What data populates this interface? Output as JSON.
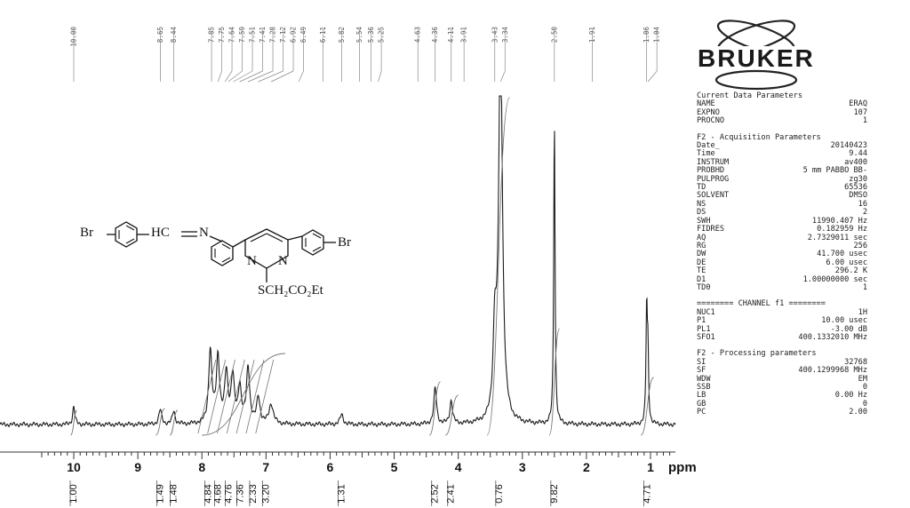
{
  "chart_data": {
    "type": "line",
    "title": "",
    "xlabel": "ppm",
    "ylabel": "",
    "xlim": [
      10.8,
      0.2
    ],
    "x_reversed": true,
    "grid": false,
    "x_ticks": [
      "10",
      "9",
      "8",
      "7",
      "6",
      "5",
      "4",
      "3",
      "2",
      "1"
    ],
    "peak_labels": [
      "10.00",
      "8.65",
      "8.44",
      "7.85",
      "7.75",
      "7.64",
      "7.59",
      "7.51",
      "7.41",
      "7.28",
      "7.12",
      "6.92",
      "6.49",
      "6.11",
      "5.82",
      "5.54",
      "5.36",
      "5.25",
      "4.63",
      "4.36",
      "4.11",
      "3.91",
      "3.43",
      "3.34",
      "2.50",
      "1.91",
      "1.06",
      "1.04"
    ],
    "integrals": [
      {
        "ppm": 10.0,
        "value": "1.00"
      },
      {
        "ppm": 8.65,
        "value": "1.49"
      },
      {
        "ppm": 8.44,
        "value": "1.48"
      },
      {
        "ppm": 7.9,
        "value": "4.84"
      },
      {
        "ppm": 7.75,
        "value": "4.68"
      },
      {
        "ppm": 7.58,
        "value": "4.76"
      },
      {
        "ppm": 7.4,
        "value": "7.36"
      },
      {
        "ppm": 7.2,
        "value": "2.33"
      },
      {
        "ppm": 7.0,
        "value": "3.20"
      },
      {
        "ppm": 5.82,
        "value": "1.31"
      },
      {
        "ppm": 4.36,
        "value": "2.52"
      },
      {
        "ppm": 4.11,
        "value": "2.41"
      },
      {
        "ppm": 3.36,
        "value": "0.76"
      },
      {
        "ppm": 2.5,
        "value": "9.82"
      },
      {
        "ppm": 1.05,
        "value": "4.71"
      }
    ],
    "series": [
      {
        "intensity_scale": "fraction of plot height",
        "peaks": [
          {
            "ppm": 10.0,
            "intensity": 0.055,
            "width": 0.02
          },
          {
            "ppm": 8.65,
            "intensity": 0.045,
            "width": 0.025
          },
          {
            "ppm": 8.44,
            "intensity": 0.04,
            "width": 0.025
          },
          {
            "ppm": 7.87,
            "intensity": 0.22,
            "width": 0.03
          },
          {
            "ppm": 7.75,
            "intensity": 0.2,
            "width": 0.03
          },
          {
            "ppm": 7.62,
            "intensity": 0.15,
            "width": 0.03
          },
          {
            "ppm": 7.52,
            "intensity": 0.14,
            "width": 0.03
          },
          {
            "ppm": 7.41,
            "intensity": 0.11,
            "width": 0.03
          },
          {
            "ppm": 7.28,
            "intensity": 0.17,
            "width": 0.03
          },
          {
            "ppm": 7.12,
            "intensity": 0.08,
            "width": 0.03
          },
          {
            "ppm": 6.92,
            "intensity": 0.06,
            "width": 0.04
          },
          {
            "ppm": 5.82,
            "intensity": 0.03,
            "width": 0.03
          },
          {
            "ppm": 4.36,
            "intensity": 0.11,
            "width": 0.025
          },
          {
            "ppm": 4.11,
            "intensity": 0.07,
            "width": 0.025
          },
          {
            "ppm": 3.43,
            "intensity": 0.25,
            "width": 0.03
          },
          {
            "ppm": 3.34,
            "intensity": 1.2,
            "width": 0.035
          },
          {
            "ppm": 2.5,
            "intensity": 0.93,
            "width": 0.012
          },
          {
            "ppm": 1.06,
            "intensity": 0.35,
            "width": 0.012
          },
          {
            "ppm": 1.04,
            "intensity": 0.2,
            "width": 0.012
          }
        ]
      }
    ]
  },
  "molecule": {
    "br_left": "Br",
    "imine": "HC",
    "n_imine": "N",
    "n_ring_left": "N",
    "n_ring_right": "N",
    "br_right": "Br",
    "side_chain": "SCH₂CO₂Et"
  },
  "logo": {
    "text": "BRUKER",
    "color": "#1a1a1a"
  },
  "params": {
    "current_title": "Current Data Parameters",
    "current": [
      {
        "k": "NAME",
        "v": "ERAQ"
      },
      {
        "k": "EXPNO",
        "v": "107"
      },
      {
        "k": "PROCNO",
        "v": "1"
      }
    ],
    "acq_title": "F2 - Acquisition Parameters",
    "acq": [
      {
        "k": "Date_",
        "v": "20140423"
      },
      {
        "k": "Time",
        "v": "9.44"
      },
      {
        "k": "INSTRUM",
        "v": "av400"
      },
      {
        "k": "PROBHD",
        "v": "5 mm PABBO BB-"
      },
      {
        "k": "PULPROG",
        "v": "zg30"
      },
      {
        "k": "TD",
        "v": "65536"
      },
      {
        "k": "SOLVENT",
        "v": "DMSO"
      },
      {
        "k": "NS",
        "v": "16"
      },
      {
        "k": "DS",
        "v": "2"
      },
      {
        "k": "SWH",
        "v": "11990.407 Hz"
      },
      {
        "k": "FIDRES",
        "v": "0.182959 Hz"
      },
      {
        "k": "AQ",
        "v": "2.7329011 sec"
      },
      {
        "k": "RG",
        "v": "256"
      },
      {
        "k": "DW",
        "v": "41.700 usec"
      },
      {
        "k": "DE",
        "v": "6.00 usec"
      },
      {
        "k": "TE",
        "v": "296.2 K"
      },
      {
        "k": "D1",
        "v": "1.00000000 sec"
      },
      {
        "k": "TD0",
        "v": "1"
      }
    ],
    "channel_title": "======== CHANNEL f1 ========",
    "channel": [
      {
        "k": "NUC1",
        "v": "1H"
      },
      {
        "k": "P1",
        "v": "10.00 usec"
      },
      {
        "k": "PL1",
        "v": "-3.00 dB"
      },
      {
        "k": "SFO1",
        "v": "400.1332010 MHz"
      }
    ],
    "proc_title": "F2 - Processing parameters",
    "proc": [
      {
        "k": "SI",
        "v": "32768"
      },
      {
        "k": "SF",
        "v": "400.1299968 MHz"
      },
      {
        "k": "WDW",
        "v": "EM"
      },
      {
        "k": "SSB",
        "v": "0"
      },
      {
        "k": "LB",
        "v": "0.00 Hz"
      },
      {
        "k": "GB",
        "v": "0"
      },
      {
        "k": "PC",
        "v": "2.00"
      }
    ]
  }
}
